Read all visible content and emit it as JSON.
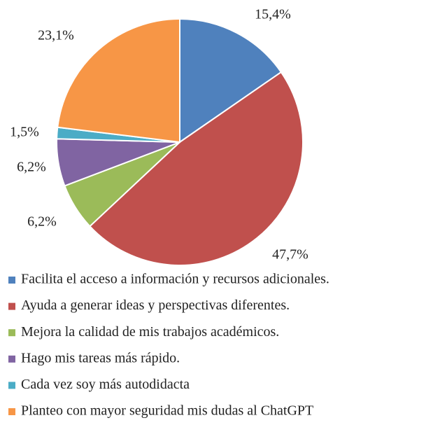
{
  "chart_data": {
    "type": "pie",
    "categories": [
      "Facilita el acceso a información y recursos adicionales.",
      "Ayuda a generar ideas y perspectivas diferentes.",
      "Mejora la calidad de mis trabajos académicos.",
      "Hago mis tareas más rápido.",
      "Cada vez soy más autodidacta",
      "Planteo con mayor seguridad mis dudas al ChatGPT"
    ],
    "values": [
      15.4,
      47.7,
      6.2,
      6.2,
      1.5,
      23.1
    ],
    "value_labels": [
      "15,4%",
      "47,7%",
      "6,2%",
      "6,2%",
      "1,5%",
      "23,1%"
    ],
    "colors": [
      "#4f81bd",
      "#c0504d",
      "#9bbb59",
      "#8064a2",
      "#4bacc6",
      "#f79646"
    ],
    "legend": "bottom"
  }
}
